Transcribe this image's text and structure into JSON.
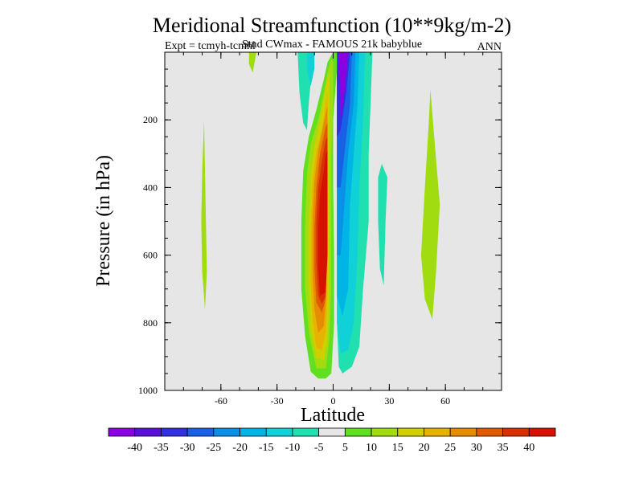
{
  "chart_data": {
    "type": "contour",
    "title": "Meridional Streamfunction (10**9kg/m-2)",
    "subtitle_left": "Expt = tcmyh-tcmhl",
    "subtitle_center": "Stnd CWmax - FAMOUS 21k babyblue",
    "subtitle_right": "ANN",
    "xlabel": "Latitude",
    "ylabel": "Pressure (in hPa)",
    "xlim": [
      -90,
      90
    ],
    "ylim": [
      0,
      1000
    ],
    "y_inverted": true,
    "x_ticks": [
      -60,
      -30,
      0,
      30,
      60
    ],
    "x_tick_labels": [
      "-60",
      "-30",
      "0",
      "30",
      "60"
    ],
    "y_ticks": [
      200,
      400,
      600,
      800,
      1000
    ],
    "y_tick_labels": [
      "200",
      "400",
      "600",
      "800",
      "1000"
    ],
    "background_color": "#e6e6e6",
    "colorbar": {
      "labels": [
        "-40",
        "-35",
        "-30",
        "-25",
        "-20",
        "-15",
        "-10",
        "-5",
        "5",
        "10",
        "15",
        "20",
        "25",
        "30",
        "35",
        "40"
      ],
      "colors": [
        "#8a00e0",
        "#5a10d8",
        "#3030e0",
        "#1a60e6",
        "#0a90e6",
        "#00b4e6",
        "#10d0d8",
        "#20e0b0",
        "#e6e6e6",
        "#60e020",
        "#a0dc10",
        "#d0d000",
        "#e6b400",
        "#e68c00",
        "#e05a00",
        "#d83000",
        "#d81000"
      ]
    },
    "regions": [
      {
        "level": "10",
        "points": [
          [
            -69,
            200
          ],
          [
            -68.5,
            350
          ],
          [
            -68,
            500
          ],
          [
            -67.5,
            650
          ],
          [
            -68.5,
            760
          ],
          [
            -70,
            650
          ],
          [
            -70.5,
            500
          ],
          [
            -70,
            350
          ]
        ]
      },
      {
        "level": "10",
        "points": [
          [
            -45,
            0
          ],
          [
            -41,
            0
          ],
          [
            -43,
            60
          ],
          [
            -45,
            35
          ]
        ]
      },
      {
        "level": "10",
        "points": [
          [
            52,
            110
          ],
          [
            54,
            250
          ],
          [
            57,
            450
          ],
          [
            55,
            650
          ],
          [
            53,
            790
          ],
          [
            49,
            730
          ],
          [
            47,
            600
          ],
          [
            49,
            400
          ],
          [
            51,
            220
          ]
        ]
      },
      {
        "level": "-5",
        "points": [
          [
            -19,
            0
          ],
          [
            -11,
            0
          ],
          [
            -11,
            30
          ],
          [
            -13,
            150
          ],
          [
            -14,
            230
          ],
          [
            -16,
            210
          ],
          [
            -18,
            120
          ]
        ]
      },
      {
        "level": "-10",
        "points": [
          [
            -14,
            0
          ],
          [
            -10,
            0
          ],
          [
            -10,
            50
          ],
          [
            -12,
            100
          ],
          [
            -14,
            50
          ]
        ]
      },
      {
        "level": "-5",
        "points": [
          [
            26,
            330
          ],
          [
            29,
            370
          ],
          [
            28,
            500
          ],
          [
            27,
            690
          ],
          [
            25,
            640
          ],
          [
            24,
            500
          ],
          [
            24,
            370
          ]
        ]
      },
      {
        "level": "-5",
        "points": [
          [
            2,
            0
          ],
          [
            21,
            0
          ],
          [
            20,
            150
          ],
          [
            19,
            300
          ],
          [
            19,
            500
          ],
          [
            16,
            700
          ],
          [
            14,
            870
          ],
          [
            10,
            930
          ],
          [
            5,
            950
          ],
          [
            3,
            930
          ],
          [
            2,
            800
          ]
        ]
      },
      {
        "level": "-10",
        "points": [
          [
            2,
            0
          ],
          [
            17,
            0
          ],
          [
            16,
            200
          ],
          [
            14,
            400
          ],
          [
            13,
            600
          ],
          [
            11,
            800
          ],
          [
            8,
            880
          ],
          [
            4,
            890
          ],
          [
            2,
            800
          ]
        ]
      },
      {
        "level": "-15",
        "points": [
          [
            2,
            0
          ],
          [
            14,
            0
          ],
          [
            13,
            150
          ],
          [
            11,
            300
          ],
          [
            9,
            450
          ],
          [
            8,
            700
          ],
          [
            5,
            780
          ],
          [
            2,
            720
          ]
        ]
      },
      {
        "level": "-20",
        "points": [
          [
            2,
            0
          ],
          [
            12,
            0
          ],
          [
            11,
            150
          ],
          [
            8,
            300
          ],
          [
            6,
            450
          ],
          [
            4,
            600
          ],
          [
            2,
            600
          ]
        ]
      },
      {
        "level": "-25",
        "points": [
          [
            2,
            0
          ],
          [
            10,
            0
          ],
          [
            9,
            150
          ],
          [
            6,
            300
          ],
          [
            4,
            400
          ],
          [
            2,
            400
          ]
        ]
      },
      {
        "level": "-30",
        "points": [
          [
            2,
            0
          ],
          [
            9,
            0
          ],
          [
            7,
            120
          ],
          [
            4,
            230
          ],
          [
            2,
            250
          ]
        ]
      },
      {
        "level": "-40",
        "points": [
          [
            3,
            0
          ],
          [
            8,
            0
          ],
          [
            6,
            120
          ],
          [
            4,
            200
          ]
        ]
      },
      {
        "level": "5",
        "points": [
          [
            -3,
            30
          ],
          [
            0,
            0
          ],
          [
            2,
            0
          ],
          [
            2,
            50
          ],
          [
            0,
            200
          ],
          [
            0,
            400
          ],
          [
            0.5,
            600
          ],
          [
            0.5,
            800
          ],
          [
            -1,
            950
          ],
          [
            -4,
            965
          ],
          [
            -8,
            965
          ],
          [
            -12,
            945
          ],
          [
            -15,
            840
          ],
          [
            -17,
            700
          ],
          [
            -17,
            500
          ],
          [
            -16,
            350
          ],
          [
            -13,
            250
          ],
          [
            -9,
            170
          ],
          [
            -5,
            80
          ]
        ]
      },
      {
        "level": "10",
        "points": [
          [
            -3,
            60
          ],
          [
            -1,
            20
          ],
          [
            0,
            30
          ],
          [
            0,
            150
          ],
          [
            -1,
            300
          ],
          [
            -1,
            500
          ],
          [
            -1,
            700
          ],
          [
            -2,
            850
          ],
          [
            -4,
            935
          ],
          [
            -9,
            935
          ],
          [
            -13,
            830
          ],
          [
            -15,
            700
          ],
          [
            -15,
            500
          ],
          [
            -14,
            360
          ],
          [
            -12,
            270
          ],
          [
            -8,
            200
          ],
          [
            -5,
            120
          ]
        ]
      },
      {
        "level": "15",
        "points": [
          [
            -4,
            100
          ],
          [
            -2,
            60
          ],
          [
            -2,
            250
          ],
          [
            -2,
            500
          ],
          [
            -2,
            700
          ],
          [
            -3,
            850
          ],
          [
            -5,
            910
          ],
          [
            -9,
            905
          ],
          [
            -12,
            820
          ],
          [
            -13,
            680
          ],
          [
            -13,
            500
          ],
          [
            -12,
            360
          ],
          [
            -10,
            280
          ],
          [
            -7,
            200
          ]
        ]
      },
      {
        "level": "20",
        "points": [
          [
            -4,
            150
          ],
          [
            -3,
            120
          ],
          [
            -3,
            400
          ],
          [
            -3,
            700
          ],
          [
            -4,
            830
          ],
          [
            -6,
            880
          ],
          [
            -9,
            875
          ],
          [
            -11,
            790
          ],
          [
            -12,
            680
          ],
          [
            -12,
            520
          ],
          [
            -11,
            380
          ],
          [
            -9,
            290
          ],
          [
            -6,
            230
          ]
        ]
      },
      {
        "level": "25",
        "points": [
          [
            -4,
            180
          ],
          [
            -3,
            160
          ],
          [
            -3,
            450
          ],
          [
            -4,
            740
          ],
          [
            -5,
            810
          ],
          [
            -8,
            830
          ],
          [
            -10,
            760
          ],
          [
            -11,
            650
          ],
          [
            -11,
            500
          ],
          [
            -10,
            380
          ],
          [
            -8,
            290
          ]
        ]
      },
      {
        "level": "30",
        "points": [
          [
            -4,
            220
          ],
          [
            -3,
            210
          ],
          [
            -3,
            500
          ],
          [
            -4,
            730
          ],
          [
            -6,
            770
          ],
          [
            -9,
            740
          ],
          [
            -10,
            640
          ],
          [
            -10,
            520
          ],
          [
            -9,
            400
          ],
          [
            -7,
            300
          ]
        ]
      },
      {
        "level": "35",
        "points": [
          [
            -4,
            260
          ],
          [
            -3,
            250
          ],
          [
            -3,
            550
          ],
          [
            -4,
            720
          ],
          [
            -6,
            745
          ],
          [
            -8,
            720
          ],
          [
            -9,
            620
          ],
          [
            -9,
            500
          ],
          [
            -8,
            400
          ],
          [
            -6,
            320
          ]
        ]
      },
      {
        "level": "40",
        "points": [
          [
            -4,
            300
          ],
          [
            -3,
            290
          ],
          [
            -3,
            600
          ],
          [
            -4,
            710
          ],
          [
            -7,
            720
          ],
          [
            -8,
            640
          ],
          [
            -8,
            520
          ],
          [
            -7,
            420
          ],
          [
            -5,
            350
          ]
        ]
      }
    ]
  }
}
